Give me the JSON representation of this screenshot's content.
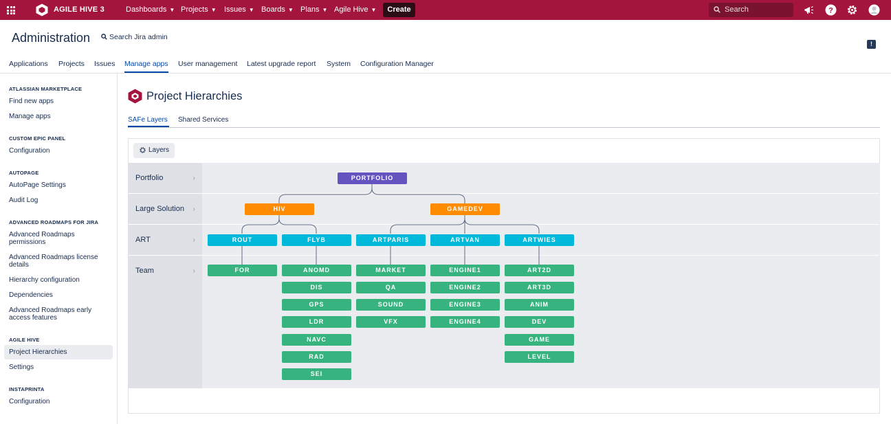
{
  "topnav": {
    "brand": "AGILE HIVE 3",
    "items": [
      {
        "label": "Dashboards"
      },
      {
        "label": "Projects"
      },
      {
        "label": "Issues"
      },
      {
        "label": "Boards"
      },
      {
        "label": "Plans"
      },
      {
        "label": "Agile Hive"
      }
    ],
    "create_label": "Create",
    "search_placeholder": "Search",
    "icons": [
      "app-switcher-icon",
      "agile-hive-logo-icon",
      "search-icon",
      "megaphone-icon",
      "help-icon",
      "settings-icon",
      "avatar"
    ],
    "background_color": "#a3153c"
  },
  "header": {
    "title": "Administration",
    "search_label": "Search Jira admin",
    "tabs": [
      {
        "label": "Applications"
      },
      {
        "label": "Projects"
      },
      {
        "label": "Issues"
      },
      {
        "label": "Manage apps",
        "active": true
      },
      {
        "label": "User management"
      },
      {
        "label": "Latest upgrade report"
      },
      {
        "label": "System"
      },
      {
        "label": "Configuration Manager"
      }
    ]
  },
  "sidebar": {
    "sections": [
      {
        "title": "ATLASSIAN MARKETPLACE",
        "items": [
          "Find new apps",
          "Manage apps"
        ]
      },
      {
        "title": "CUSTOM EPIC PANEL",
        "items": [
          "Configuration"
        ]
      },
      {
        "title": "AUTOPAGE",
        "items": [
          "AutoPage Settings",
          "Audit Log"
        ]
      },
      {
        "title": "ADVANCED ROADMAPS FOR JIRA",
        "items": [
          "Advanced Roadmaps permissions",
          "Advanced Roadmaps license details",
          "Hierarchy configuration",
          "Dependencies",
          "Advanced Roadmaps early access features"
        ]
      },
      {
        "title": "AGILE HIVE",
        "items": [
          "Project Hierarchies",
          "Settings"
        ]
      },
      {
        "title": "INSTAPRINTA",
        "items": [
          "Configuration"
        ]
      }
    ],
    "active_item": "Project Hierarchies"
  },
  "main": {
    "title": "Project Hierarchies",
    "subtabs": [
      {
        "label": "SAFe Layers",
        "active": true
      },
      {
        "label": "Shared Services"
      }
    ],
    "layers_button": "Layers",
    "rows": [
      "Portfolio",
      "Large Solution",
      "ART",
      "Team"
    ],
    "hierarchy": {
      "portfolio": "PORTFOLIO",
      "solutions": [
        "HIV",
        "GAMEDEV"
      ],
      "arts": [
        "ROUT",
        "FLYB",
        "ARTPARIS",
        "ARTVAN",
        "ARTWIES"
      ],
      "teams": {
        "ROUT": [
          "FOR"
        ],
        "FLYB": [
          "ANOMD",
          "DIS",
          "GPS",
          "LDR",
          "NAVC",
          "RAD",
          "SEI"
        ],
        "ARTPARIS": [
          "MARKET",
          "QA",
          "SOUND",
          "VFX"
        ],
        "ARTVAN": [
          "ENGINE1",
          "ENGINE2",
          "ENGINE3",
          "ENGINE4"
        ],
        "ARTWIES": [
          "ART2D",
          "ART3D",
          "ANIM",
          "DEV",
          "GAME",
          "LEVEL"
        ]
      },
      "colors": {
        "portfolio": "#6554c0",
        "large_solution": "#ff8b00",
        "art": "#00b8d9",
        "team": "#36b37e"
      }
    }
  }
}
